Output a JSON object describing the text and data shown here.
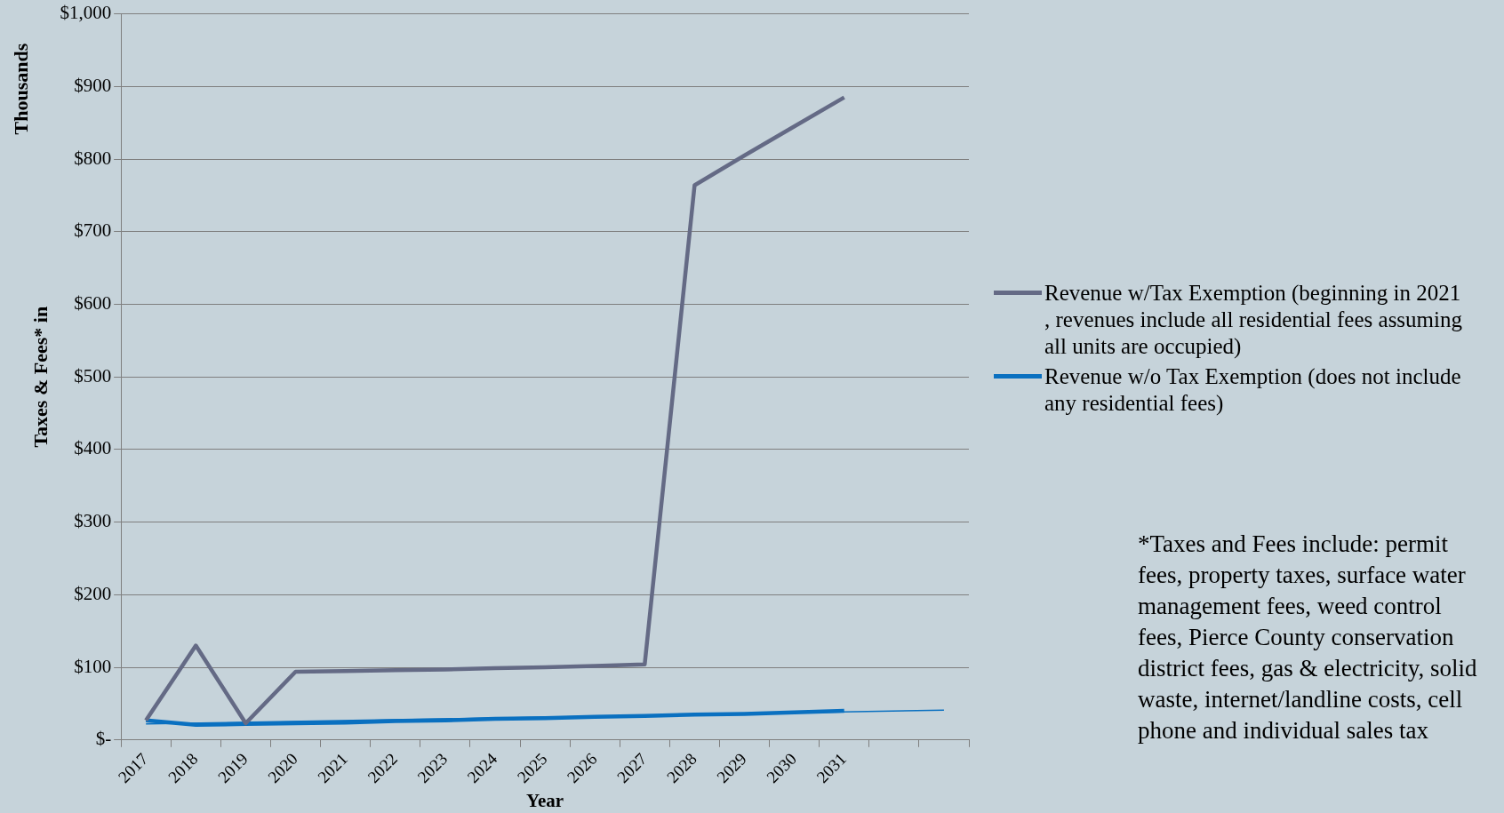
{
  "chart_data": {
    "type": "line",
    "xlabel": "Year",
    "ylabel": "Taxes & Fees* in",
    "categories": [
      "2017",
      "2018",
      "2019",
      "2020",
      "2021",
      "2022",
      "2023",
      "2024",
      "2025",
      "2026",
      "2027",
      "2028",
      "2029",
      "2030",
      "2031",
      null,
      null
    ],
    "series": [
      {
        "name": "Revenue w/Tax Exemption (beginning in 2021 , revenues include all residential fees assuming all units are occupied)",
        "color": "#646a85",
        "values": [
          27,
          130,
          23,
          94,
          95,
          96,
          97,
          99,
          100,
          102,
          104,
          764,
          805,
          845,
          885,
          null,
          null
        ]
      },
      {
        "name": "Revenue w/o Tax Exemption (does not include any residential fees)",
        "color": "#0a70c0",
        "values": [
          27,
          21,
          22,
          23,
          24,
          26,
          27,
          29,
          30,
          32,
          33,
          35,
          36,
          38,
          40,
          null,
          null
        ]
      },
      {
        "type": "line",
        "color": "#0a70c0",
        "values": [
          22,
          null,
          null,
          null,
          null,
          null,
          null,
          null,
          null,
          null,
          null,
          null,
          null,
          null,
          null,
          null,
          41
        ]
      }
    ],
    "ylim": [
      0,
      1000
    ],
    "yticks": [
      {
        "value": 0,
        "label": "$-"
      },
      {
        "value": 100,
        "label": "$100"
      },
      {
        "value": 200,
        "label": "$200"
      },
      {
        "value": 300,
        "label": "$300"
      },
      {
        "value": 400,
        "label": "$400"
      },
      {
        "value": 500,
        "label": "$500"
      },
      {
        "value": 600,
        "label": "$600"
      },
      {
        "value": 700,
        "label": "$700"
      },
      {
        "value": 800,
        "label": "$800"
      },
      {
        "value": 900,
        "label": "$900"
      },
      {
        "value": 1000,
        "label": "$1,000"
      }
    ],
    "grid": "y",
    "legend": "right",
    "marker": "none",
    "annotations": [
      "Thousands",
      "*Taxes and Fees include: permit fees, property taxes, surface water management fees, weed control fees, Pierce County conservation district fees, gas & electricity, solid waste, internet/landline costs, cell phone and individual sales tax"
    ]
  }
}
